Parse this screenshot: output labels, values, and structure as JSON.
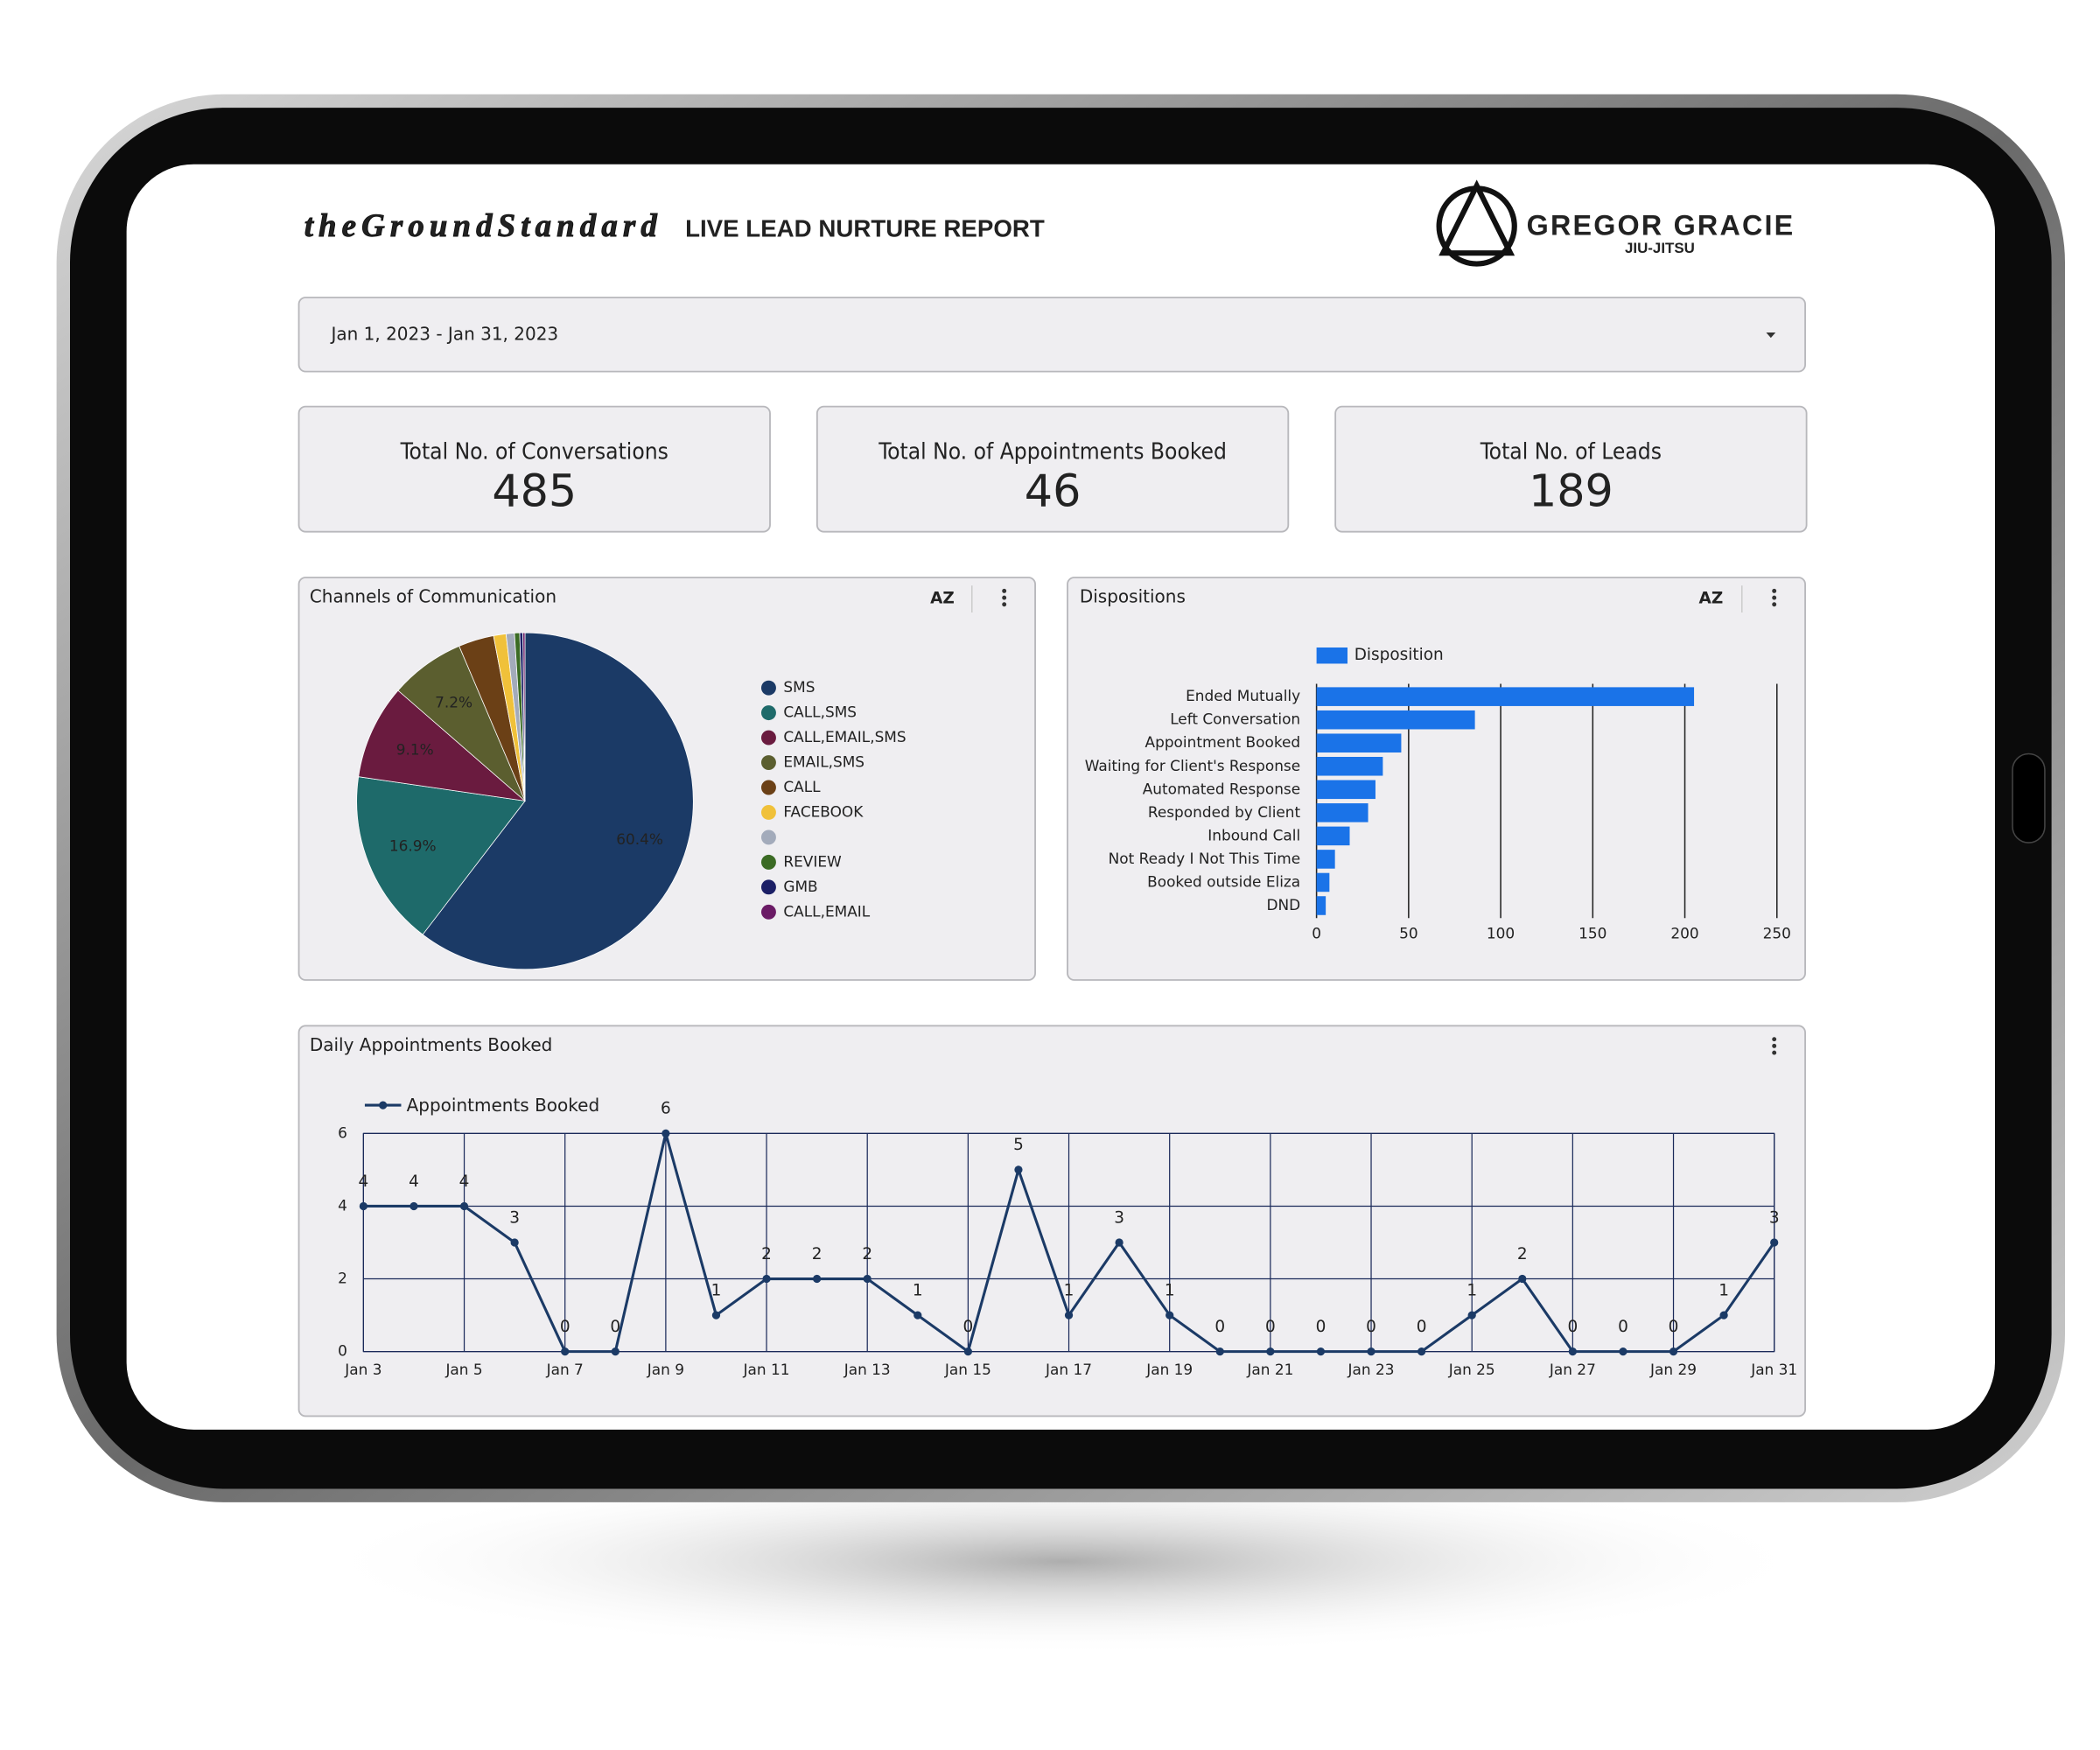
{
  "header": {
    "brand": "theGroundStandard",
    "title": "LIVE LEAD NURTURE REPORT",
    "partner": "GREGOR GRACIE",
    "partner_sub": "JIU-JITSU"
  },
  "date_range": "Jan 1, 2023 - Jan 31, 2023",
  "kpis": [
    {
      "label": "Total No. of Conversations",
      "value": 485
    },
    {
      "label": "Total No. of Appointments Booked",
      "value": 46
    },
    {
      "label": "Total No. of Leads",
      "value": 189
    }
  ],
  "chart_data": [
    {
      "type": "pie",
      "title": "Channels of Communication",
      "categories": [
        "SMS",
        "CALL,SMS",
        "CALL,EMAIL,SMS",
        "EMAIL,SMS",
        "CALL",
        "FACEBOOK",
        null,
        "REVIEW",
        "GMB",
        "CALL,EMAIL"
      ],
      "values": [
        60.4,
        16.9,
        9.1,
        7.2,
        3.4,
        1.2,
        0.8,
        0.5,
        0.3,
        0.2
      ],
      "value_labels": [
        "60.4%",
        "16.9%",
        "9.1%",
        "7.2%",
        null,
        null,
        null,
        null,
        null,
        null
      ],
      "colors": [
        "#1b3a66",
        "#1e6a6a",
        "#6a1b3f",
        "#5b5e2f",
        "#6b4016",
        "#f0c13a",
        "#a3abbb",
        "#3b6b24",
        "#1b1f66",
        "#6b1b66"
      ]
    },
    {
      "type": "bar",
      "orientation": "horizontal",
      "title": "Dispositions",
      "categories": [
        "Ended Mutually",
        "Left Conversation",
        "Appointment Booked",
        "Waiting for Client's Response",
        "Automated Response",
        "Responded by Client",
        "Inbound Call",
        "Not Ready I Not This Time",
        "Booked outside Eliza",
        "DND"
      ],
      "series": [
        {
          "name": "Disposition",
          "color": "#1a73e8",
          "values": [
            205,
            86,
            46,
            36,
            32,
            28,
            18,
            10,
            7,
            5
          ]
        }
      ],
      "xlim": [
        0,
        250
      ],
      "xticks": [
        0,
        50,
        100,
        150,
        200,
        250
      ],
      "grid": true
    },
    {
      "type": "line",
      "title": "Daily Appointments Booked",
      "categories": [
        "Jan 3",
        null,
        "Jan 5",
        null,
        "Jan 7",
        null,
        "Jan 9",
        null,
        "Jan 11",
        null,
        "Jan 13",
        null,
        "Jan 15",
        null,
        "Jan 17",
        null,
        "Jan 19",
        null,
        "Jan 21",
        null,
        "Jan 23",
        null,
        "Jan 25",
        null,
        "Jan 27",
        null,
        "Jan 29",
        null,
        "Jan 31"
      ],
      "series": [
        {
          "name": "Appointments Booked",
          "color": "#1b3a66",
          "values": [
            4,
            4,
            4,
            3,
            0,
            0,
            6,
            1,
            2,
            2,
            2,
            1,
            0,
            5,
            1,
            3,
            1,
            0,
            0,
            0,
            0,
            0,
            1,
            2,
            0,
            0,
            0,
            1,
            3
          ]
        }
      ],
      "ylim": [
        0,
        6
      ],
      "yticks": [
        0,
        2,
        4,
        6
      ],
      "grid": true
    }
  ]
}
